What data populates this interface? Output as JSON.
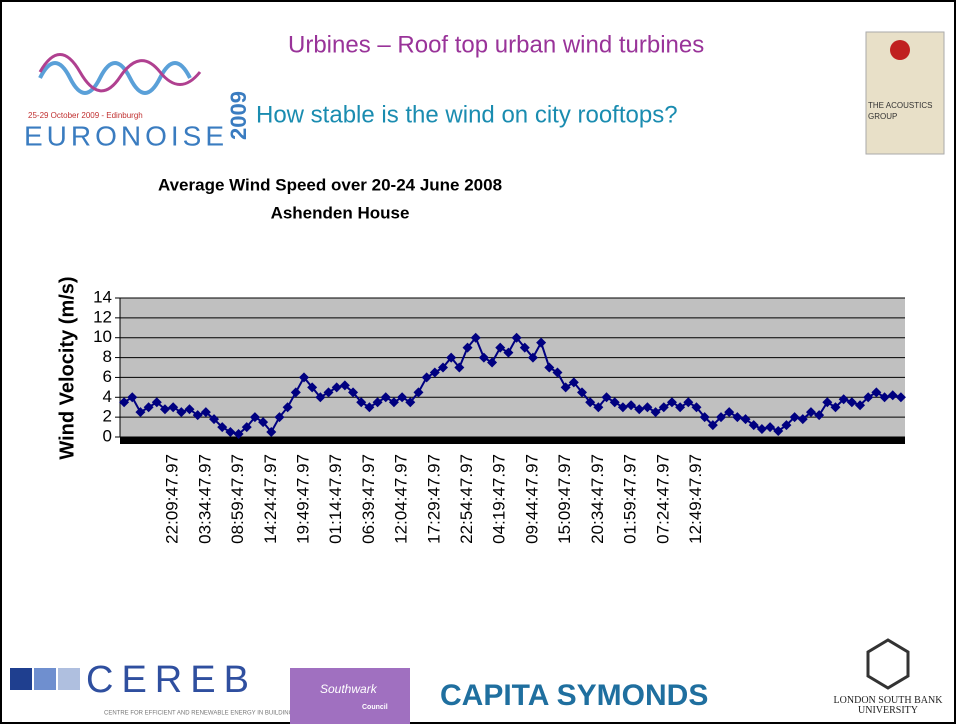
{
  "slide": {
    "title": "Urbines – Roof top urban wind turbines",
    "subtitle": "How stable is the wind on city rooftops?",
    "logos": {
      "euronoise": "EURONOISE",
      "euronoise_year": "2009",
      "euronoise_dates": "25-29 October 2009 - Edinburgh",
      "acoustics": "THE ACOUSTICS GROUP",
      "cereb": "CEREB",
      "cereb_sub": "CENTRE FOR EFFICIENT AND RENEWABLE ENERGY IN BUILDINGS",
      "southwark": "Southwark",
      "southwark_sub": "Council",
      "capita": "CAPITA SYMONDS",
      "lsbu": "LONDON SOUTH BANK UNIVERSITY"
    }
  },
  "chart_data": {
    "type": "line",
    "title": [
      "Average Wind Speed over 20-24 June 2008",
      "Ashenden House"
    ],
    "y_label": "Wind Velocity (m/s)",
    "categories": [
      null,
      null,
      null,
      null,
      null,
      null,
      "22:09:47.97",
      null,
      null,
      null,
      "03:34:47.97",
      null,
      null,
      null,
      "08:59:47.97",
      null,
      null,
      null,
      "14:24:47.97",
      null,
      null,
      null,
      "19:49:47.97",
      null,
      null,
      null,
      "01:14:47.97",
      null,
      null,
      null,
      "06:39:47.97",
      null,
      null,
      null,
      "12:04:47.97",
      null,
      null,
      null,
      "17:29:47.97",
      null,
      null,
      null,
      "22:54:47.97",
      null,
      null,
      null,
      "04:19:47.97",
      null,
      null,
      null,
      "09:44:47.97",
      null,
      null,
      null,
      "15:09:47.97",
      null,
      null,
      null,
      "20:34:47.97",
      null,
      null,
      null,
      "01:59:47.97",
      null,
      null,
      null,
      "07:24:47.97",
      null,
      null,
      null,
      "12:49:47.97",
      null,
      null,
      null,
      null,
      null,
      null,
      null,
      null,
      null,
      null,
      null,
      null,
      null,
      null,
      null,
      null,
      null,
      null,
      null,
      null,
      null,
      null,
      null,
      null,
      null
    ],
    "series": [
      {
        "name": "Wind Velocity",
        "color": "#000080",
        "values": [
          3.5,
          4,
          2.5,
          3,
          3.5,
          2.8,
          3,
          2.5,
          2.8,
          2.2,
          2.5,
          1.8,
          1,
          0.5,
          0.3,
          1,
          2,
          1.5,
          0.5,
          2,
          3,
          4.5,
          6,
          5,
          4,
          4.5,
          5,
          5.2,
          4.5,
          3.5,
          3,
          3.5,
          4,
          3.5,
          4,
          3.5,
          4.5,
          6,
          6.5,
          7,
          8,
          7,
          9,
          10,
          8,
          7.5,
          9,
          8.5,
          10,
          9,
          8,
          9.5,
          7,
          6.5,
          5,
          5.5,
          4.5,
          3.5,
          3,
          4,
          3.5,
          3,
          3.2,
          2.8,
          3,
          2.5,
          3,
          3.5,
          3,
          3.5,
          3,
          2,
          1.2,
          2,
          2.5,
          2,
          1.8,
          1.2,
          0.8,
          1,
          0.6,
          1.2,
          2,
          1.8,
          2.5,
          2.2,
          3.5,
          3,
          3.8,
          3.5,
          3.2,
          4,
          4.5,
          4,
          4.2,
          4
        ]
      }
    ],
    "ylim": [
      0,
      14
    ],
    "yticks": [
      0,
      2,
      4,
      6,
      8,
      10,
      12,
      14
    ],
    "grid": true,
    "plot_background": "#c0c0c0"
  }
}
